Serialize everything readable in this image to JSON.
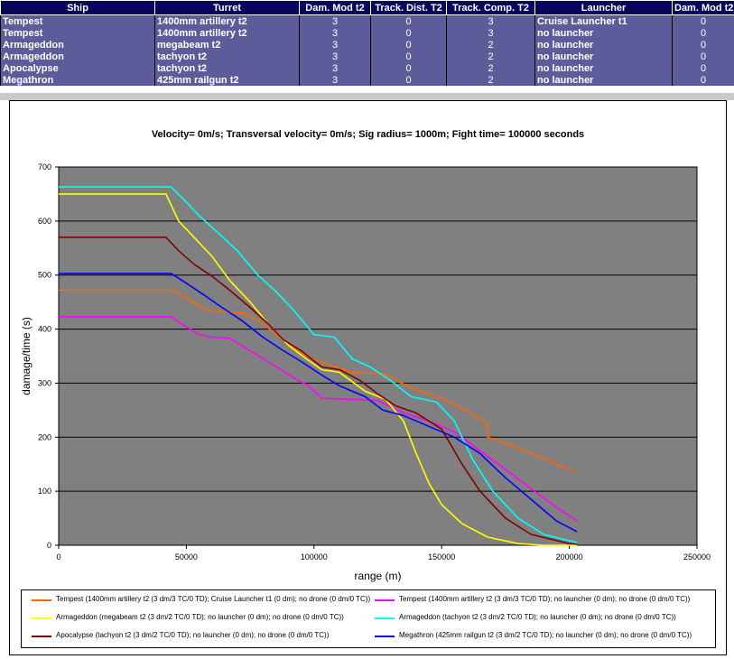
{
  "table": {
    "headers": [
      "Ship",
      "Turret",
      "Dam. Mod t2",
      "Track. Dist. T2",
      "Track. Comp. T2",
      "Launcher",
      "Dam. Mod t2"
    ],
    "rows": [
      [
        "Tempest",
        "1400mm artillery t2",
        "3",
        "0",
        "3",
        "Cruise Launcher t1",
        "0"
      ],
      [
        "Tempest",
        "1400mm artillery t2",
        "3",
        "0",
        "3",
        "no launcher",
        "0"
      ],
      [
        "Armageddon",
        "megabeam t2",
        "3",
        "0",
        "2",
        "no launcher",
        "0"
      ],
      [
        "Armageddon",
        "tachyon t2",
        "3",
        "0",
        "2",
        "no launcher",
        "0"
      ],
      [
        "Apocalypse",
        "tachyon t2",
        "3",
        "0",
        "2",
        "no launcher",
        "0"
      ],
      [
        "Megathron",
        "425mm railgun t2",
        "3",
        "0",
        "2",
        "no launcher",
        "0"
      ]
    ]
  },
  "chart_data": {
    "type": "line",
    "title": "Velocity= 0m/s; Transversal velocity= 0m/s; Sig radius= 1000m; Fight time= 100000 seconds",
    "xlabel": "range (m)",
    "ylabel": "damage/time (s)",
    "xlim": [
      0,
      250000
    ],
    "ylim": [
      0,
      700
    ],
    "xticks": [
      "0",
      "50000",
      "100000",
      "150000",
      "200000",
      "250000"
    ],
    "yticks": [
      "0",
      "100",
      "200",
      "300",
      "400",
      "500",
      "600",
      "700"
    ],
    "plot_background": "#808080",
    "grid": "horizontal",
    "legend_position": "bottom",
    "series": [
      {
        "name": "Tempest (1400mm artillery t2 (3 dm/3 TC/0 TD); Cruise Launcher t1 (0 dm); no drone (0 dm/0 TC))",
        "color": "#ff6600",
        "points": [
          [
            0,
            472
          ],
          [
            45000,
            472
          ],
          [
            50000,
            458
          ],
          [
            57000,
            437
          ],
          [
            62000,
            433
          ],
          [
            72000,
            430
          ],
          [
            80000,
            410
          ],
          [
            88000,
            380
          ],
          [
            95000,
            355
          ],
          [
            105000,
            335
          ],
          [
            115000,
            320
          ],
          [
            128000,
            317
          ],
          [
            133000,
            303
          ],
          [
            140000,
            288
          ],
          [
            150000,
            272
          ],
          [
            160000,
            248
          ],
          [
            168000,
            225
          ],
          [
            168000,
            200
          ],
          [
            180000,
            180
          ],
          [
            190000,
            160
          ],
          [
            200000,
            140
          ],
          [
            202000,
            135
          ]
        ]
      },
      {
        "name": "Tempest (1400mm artillery t2 (3 dm/3 TC/0 TD); no launcher (0 dm); no drone (0 dm/0 TC))",
        "color": "#ff00ff",
        "points": [
          [
            0,
            423
          ],
          [
            44000,
            423
          ],
          [
            48000,
            410
          ],
          [
            55000,
            390
          ],
          [
            60000,
            385
          ],
          [
            67000,
            383
          ],
          [
            75000,
            360
          ],
          [
            82000,
            340
          ],
          [
            92000,
            310
          ],
          [
            98000,
            295
          ],
          [
            103000,
            272
          ],
          [
            115000,
            270
          ],
          [
            125000,
            268
          ],
          [
            135000,
            245
          ],
          [
            145000,
            230
          ],
          [
            155000,
            210
          ],
          [
            165000,
            175
          ],
          [
            175000,
            140
          ],
          [
            185000,
            105
          ],
          [
            195000,
            70
          ],
          [
            203000,
            45
          ]
        ]
      },
      {
        "name": "Armageddon (megabeam t2 (3 dm/2 TC/0 TD); no launcher (0 dm); no drone (0 dm/0 TC))",
        "color": "#ffff00",
        "points": [
          [
            0,
            650
          ],
          [
            42000,
            650
          ],
          [
            47000,
            600
          ],
          [
            53000,
            570
          ],
          [
            60000,
            535
          ],
          [
            67000,
            490
          ],
          [
            75000,
            450
          ],
          [
            82000,
            410
          ],
          [
            90000,
            370
          ],
          [
            97000,
            345
          ],
          [
            103000,
            325
          ],
          [
            110000,
            320
          ],
          [
            120000,
            285
          ],
          [
            128000,
            270
          ],
          [
            135000,
            230
          ],
          [
            140000,
            170
          ],
          [
            145000,
            115
          ],
          [
            150000,
            75
          ],
          [
            158000,
            40
          ],
          [
            168000,
            15
          ],
          [
            180000,
            3
          ],
          [
            190000,
            0
          ],
          [
            203000,
            0
          ]
        ]
      },
      {
        "name": "Armageddon (tachyon t2 (3 dm/2 TC/0 TD); no launcher (0 dm); no drone (0 dm/0 TC))",
        "color": "#00ffff",
        "points": [
          [
            0,
            663
          ],
          [
            44000,
            663
          ],
          [
            50000,
            635
          ],
          [
            55000,
            610
          ],
          [
            62000,
            580
          ],
          [
            70000,
            545
          ],
          [
            78000,
            500
          ],
          [
            85000,
            470
          ],
          [
            92000,
            435
          ],
          [
            100000,
            390
          ],
          [
            108000,
            385
          ],
          [
            115000,
            345
          ],
          [
            122000,
            330
          ],
          [
            130000,
            305
          ],
          [
            138000,
            275
          ],
          [
            148000,
            265
          ],
          [
            155000,
            230
          ],
          [
            162000,
            160
          ],
          [
            170000,
            100
          ],
          [
            180000,
            50
          ],
          [
            190000,
            20
          ],
          [
            203000,
            5
          ]
        ]
      },
      {
        "name": "Apocalypse (tachyon t2 (3 dm/2 TC/0 TD); no launcher (0 dm); no drone (0 dm/0 TC))",
        "color": "#800000",
        "points": [
          [
            0,
            570
          ],
          [
            42000,
            570
          ],
          [
            47000,
            545
          ],
          [
            53000,
            520
          ],
          [
            60000,
            498
          ],
          [
            67000,
            472
          ],
          [
            75000,
            440
          ],
          [
            82000,
            410
          ],
          [
            88000,
            380
          ],
          [
            95000,
            360
          ],
          [
            103000,
            330
          ],
          [
            110000,
            325
          ],
          [
            118000,
            305
          ],
          [
            125000,
            280
          ],
          [
            132000,
            258
          ],
          [
            140000,
            245
          ],
          [
            150000,
            215
          ],
          [
            158000,
            150
          ],
          [
            165000,
            100
          ],
          [
            175000,
            50
          ],
          [
            185000,
            20
          ],
          [
            200000,
            3
          ],
          [
            203000,
            2
          ]
        ]
      },
      {
        "name": "Megathron (425mm railgun t2 (3 dm/2 TC/0 TD); no launcher (0 dm); no drone (0 dm/0 TC))",
        "color": "#0000ff",
        "points": [
          [
            0,
            503
          ],
          [
            44000,
            503
          ],
          [
            50000,
            485
          ],
          [
            57000,
            463
          ],
          [
            64000,
            440
          ],
          [
            72000,
            415
          ],
          [
            80000,
            385
          ],
          [
            88000,
            360
          ],
          [
            95000,
            340
          ],
          [
            103000,
            315
          ],
          [
            110000,
            295
          ],
          [
            120000,
            275
          ],
          [
            127000,
            250
          ],
          [
            135000,
            240
          ],
          [
            145000,
            220
          ],
          [
            155000,
            200
          ],
          [
            165000,
            170
          ],
          [
            175000,
            125
          ],
          [
            185000,
            85
          ],
          [
            195000,
            45
          ],
          [
            203000,
            25
          ]
        ]
      }
    ]
  }
}
